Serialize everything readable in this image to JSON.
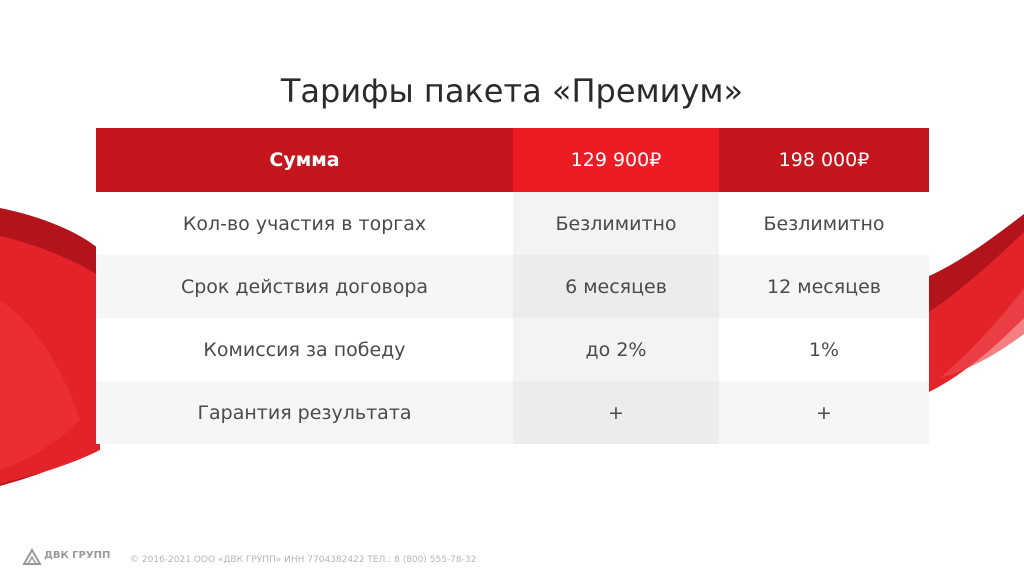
{
  "slide": {
    "title": "Тарифы пакета «Премиум»"
  },
  "table": {
    "header": {
      "label": "Сумма",
      "plans": [
        "129 900₽",
        "198 000₽"
      ]
    },
    "rows": [
      {
        "label": "Кол-во участия в торгах",
        "values": [
          "Безлимитно",
          "Безлимитно"
        ]
      },
      {
        "label": "Срок действия договора",
        "values": [
          "6 месяцев",
          "12 месяцев"
        ]
      },
      {
        "label": "Комиссия за победу",
        "values": [
          "до 2%",
          "1%"
        ]
      },
      {
        "label": "Гарантия результата",
        "values": [
          "+",
          "+"
        ]
      }
    ]
  },
  "footer": {
    "logo_text": "ДВК ГРУПП",
    "copyright": "© 2016-2021 ООО «ДВК ГРУПП» ИНН 7704382422 ТЕЛ.: 8 (800) 555-78-32"
  },
  "colors": {
    "accent": "#c4161c",
    "accent_light": "#ed1c24"
  }
}
